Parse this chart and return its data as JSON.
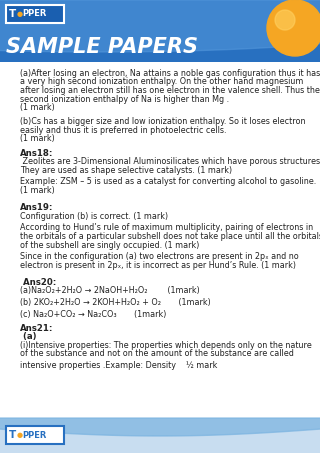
{
  "bg_color": "#ffffff",
  "header_bg_top": "#2060b0",
  "header_bg_bottom": "#3080d0",
  "header_text": "SAMPLE PAPERS",
  "header_text_color": "#ffffff",
  "topper_o_color": "#f5a623",
  "body_text_color": "#222222",
  "body_font_size": 5.8,
  "bold_font_size": 6.2,
  "content": [
    {
      "type": "body",
      "text": "(a)After losing an electron, Na attains a noble gas configuration thus it has"
    },
    {
      "type": "body",
      "text": "a very high second ionization enthalpy. On the other hand magnesium"
    },
    {
      "type": "body",
      "text": "after losing an electron still has one electron in the valence shell. Thus the"
    },
    {
      "type": "body",
      "text": "second ionization enthalpy of Na is higher than Mg ."
    },
    {
      "type": "body",
      "text": "(1 mark)"
    },
    {
      "type": "spacer"
    },
    {
      "type": "body",
      "text": "(b)Cs has a bigger size and low ionization enthalpy. So it loses electron"
    },
    {
      "type": "body",
      "text": "easily and thus it is preferred in photoelectric cells."
    },
    {
      "type": "body",
      "text": "(1 mark)"
    },
    {
      "type": "spacer"
    },
    {
      "type": "bold",
      "text": "Ans18:"
    },
    {
      "type": "body",
      "text": " Zeolites are 3-Dimensional Aluminosilicates which have porous structures."
    },
    {
      "type": "body",
      "text": "They are used as shape selective catalysts. (1 mark)"
    },
    {
      "type": "spacer_small"
    },
    {
      "type": "body",
      "text": "Example: ZSM – 5 is used as a catalyst for converting alcohol to gasoline."
    },
    {
      "type": "body",
      "text": "(1 mark)"
    },
    {
      "type": "spacer"
    },
    {
      "type": "spacer_small"
    },
    {
      "type": "bold",
      "text": "Ans19:"
    },
    {
      "type": "body",
      "text": "Configuration (b) is correct. (1 mark)"
    },
    {
      "type": "spacer_small"
    },
    {
      "type": "body",
      "text": "According to Hund’s rule of maximum multiplicity, pairing of electrons in"
    },
    {
      "type": "body",
      "text": "the orbitals of a particular subshell does not take place until all the orbitals"
    },
    {
      "type": "body",
      "text": "of the subshell are singly occupied. (1 mark)"
    },
    {
      "type": "spacer_small"
    },
    {
      "type": "body",
      "text": "Since in the configuration (a) two electrons are present in 2pₓ and no"
    },
    {
      "type": "body",
      "text": "electron is present in 2pₓ, it is incorrect as per Hund’s Rule. (1 mark)"
    },
    {
      "type": "spacer"
    },
    {
      "type": "spacer_small"
    },
    {
      "type": "bold",
      "text": " Ans20:"
    },
    {
      "type": "body",
      "text": "(a)Na₂O₂+2H₂O → 2NaOH+H₂O₂        (1mark)"
    },
    {
      "type": "spacer_small"
    },
    {
      "type": "body",
      "text": "(b) 2KO₂+2H₂O → 2KOH+H₂O₂ + O₂       (1mark)"
    },
    {
      "type": "spacer_small"
    },
    {
      "type": "body",
      "text": "(c) Na₂O+CO₂ → Na₂CO₃       (1mark)"
    },
    {
      "type": "spacer"
    },
    {
      "type": "bold",
      "text": "Ans21:"
    },
    {
      "type": "bold",
      "text": " (a)"
    },
    {
      "type": "body",
      "text": "(i)Intensive properties: The properties which depends only on the nature"
    },
    {
      "type": "body",
      "text": "of the substance and not on the amount of the substance are called"
    },
    {
      "type": "spacer_small"
    },
    {
      "type": "body",
      "text": "intensive properties .Example: Density    ½ mark"
    }
  ],
  "footer_bg": "#c8ddf0"
}
